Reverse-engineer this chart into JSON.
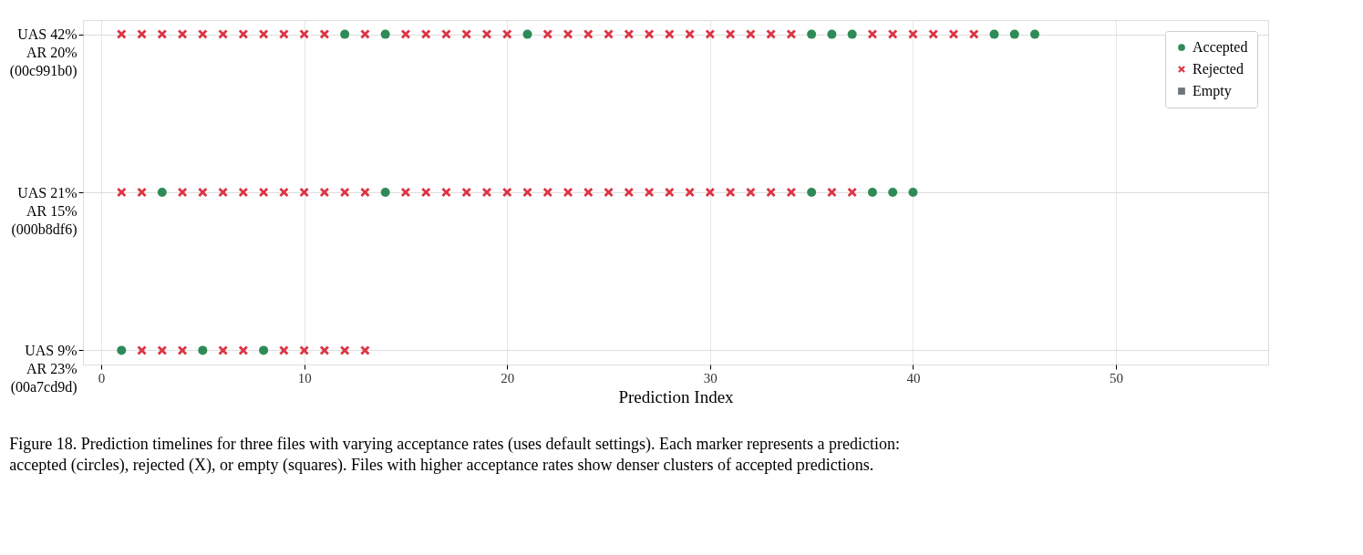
{
  "chart_data": {
    "type": "scatter",
    "orientation": "horizontal",
    "xlabel": "Prediction Index",
    "xlim": [
      -0.9,
      57.5
    ],
    "xticks": [
      0,
      10,
      20,
      30,
      40,
      50
    ],
    "categories": [
      "UAS 42%\nAR 20%\n(00c991b0)",
      "UAS 21%\nAR 15%\n(000b8df6)",
      "UAS 9%\nAR 23%\n(00a7cd9d)"
    ],
    "grid": true,
    "legend": "top right",
    "series": [
      {
        "name": "Accepted",
        "color": "#2e8b57",
        "marker": "circle",
        "values": [
          12,
          3,
          1
        ]
      },
      {
        "color": "#2e8b57",
        "marker": "circle",
        "values": [
          14,
          14,
          5
        ]
      },
      {
        "color": "#2e8b57",
        "marker": "circle",
        "values": [
          21,
          35,
          8
        ]
      },
      {
        "color": "#2e8b57",
        "marker": "circle",
        "values": [
          35,
          38,
          null
        ]
      },
      {
        "color": "#2e8b57",
        "marker": "circle",
        "values": [
          36,
          39,
          null
        ]
      },
      {
        "color": "#2e8b57",
        "marker": "circle",
        "values": [
          37,
          40,
          null
        ]
      },
      {
        "color": "#2e8b57",
        "marker": "circle",
        "values": [
          44,
          null,
          null
        ]
      },
      {
        "color": "#2e8b57",
        "marker": "circle",
        "values": [
          45,
          null,
          null
        ]
      },
      {
        "color": "#2e8b57",
        "marker": "circle",
        "values": [
          46,
          null,
          null
        ]
      },
      {
        "name": "Rejected",
        "color": "#dc3545",
        "marker": "cross",
        "values": [
          1,
          1,
          2
        ]
      },
      {
        "color": "#dc3545",
        "marker": "cross",
        "values": [
          2,
          2,
          3
        ]
      },
      {
        "color": "#dc3545",
        "marker": "cross",
        "values": [
          3,
          4,
          4
        ]
      },
      {
        "color": "#dc3545",
        "marker": "cross",
        "values": [
          4,
          5,
          6
        ]
      },
      {
        "color": "#dc3545",
        "marker": "cross",
        "values": [
          5,
          6,
          7
        ]
      },
      {
        "color": "#dc3545",
        "marker": "cross",
        "values": [
          6,
          7,
          9
        ]
      },
      {
        "color": "#dc3545",
        "marker": "cross",
        "values": [
          7,
          8,
          10
        ]
      },
      {
        "color": "#dc3545",
        "marker": "cross",
        "values": [
          8,
          9,
          11
        ]
      },
      {
        "color": "#dc3545",
        "marker": "cross",
        "values": [
          9,
          10,
          12
        ]
      },
      {
        "color": "#dc3545",
        "marker": "cross",
        "values": [
          10,
          11,
          13
        ]
      },
      {
        "color": "#dc3545",
        "marker": "cross",
        "values": [
          11,
          12,
          null
        ]
      },
      {
        "color": "#dc3545",
        "marker": "cross",
        "values": [
          13,
          13,
          null
        ]
      },
      {
        "color": "#dc3545",
        "marker": "cross",
        "values": [
          15,
          15,
          null
        ]
      },
      {
        "color": "#dc3545",
        "marker": "cross",
        "values": [
          16,
          16,
          null
        ]
      },
      {
        "color": "#dc3545",
        "marker": "cross",
        "values": [
          17,
          17,
          null
        ]
      },
      {
        "color": "#dc3545",
        "marker": "cross",
        "values": [
          18,
          18,
          null
        ]
      },
      {
        "color": "#dc3545",
        "marker": "cross",
        "values": [
          19,
          19,
          null
        ]
      },
      {
        "color": "#dc3545",
        "marker": "cross",
        "values": [
          20,
          20,
          null
        ]
      },
      {
        "color": "#dc3545",
        "marker": "cross",
        "values": [
          22,
          21,
          null
        ]
      },
      {
        "color": "#dc3545",
        "marker": "cross",
        "values": [
          23,
          22,
          null
        ]
      },
      {
        "color": "#dc3545",
        "marker": "cross",
        "values": [
          24,
          23,
          null
        ]
      },
      {
        "color": "#dc3545",
        "marker": "cross",
        "values": [
          25,
          24,
          null
        ]
      },
      {
        "color": "#dc3545",
        "marker": "cross",
        "values": [
          26,
          25,
          null
        ]
      },
      {
        "color": "#dc3545",
        "marker": "cross",
        "values": [
          27,
          26,
          null
        ]
      },
      {
        "color": "#dc3545",
        "marker": "cross",
        "values": [
          28,
          27,
          null
        ]
      },
      {
        "color": "#dc3545",
        "marker": "cross",
        "values": [
          29,
          28,
          null
        ]
      },
      {
        "color": "#dc3545",
        "marker": "cross",
        "values": [
          30,
          29,
          null
        ]
      },
      {
        "color": "#dc3545",
        "marker": "cross",
        "values": [
          31,
          30,
          null
        ]
      },
      {
        "color": "#dc3545",
        "marker": "cross",
        "values": [
          32,
          31,
          null
        ]
      },
      {
        "color": "#dc3545",
        "marker": "cross",
        "values": [
          33,
          32,
          null
        ]
      },
      {
        "color": "#dc3545",
        "marker": "cross",
        "values": [
          34,
          33,
          null
        ]
      },
      {
        "color": "#dc3545",
        "marker": "cross",
        "values": [
          38,
          34,
          null
        ]
      },
      {
        "color": "#dc3545",
        "marker": "cross",
        "values": [
          39,
          36,
          null
        ]
      },
      {
        "color": "#dc3545",
        "marker": "cross",
        "values": [
          40,
          37,
          null
        ]
      },
      {
        "color": "#dc3545",
        "marker": "cross",
        "values": [
          41,
          null,
          null
        ]
      },
      {
        "color": "#dc3545",
        "marker": "cross",
        "values": [
          42,
          null,
          null
        ]
      },
      {
        "color": "#dc3545",
        "marker": "cross",
        "values": [
          43,
          null,
          null
        ]
      },
      {
        "name": "Empty",
        "color": "#6c757d",
        "marker": "square",
        "values": [
          null,
          null,
          null
        ]
      }
    ],
    "annotations": [
      "Figure 18. Prediction timelines for three files with varying acceptance rates (uses default settings). Each marker represents a prediction: accepted (circles), rejected (X), or empty (squares). Files with higher acceptance rates show denser clusters of accepted predictions."
    ]
  }
}
